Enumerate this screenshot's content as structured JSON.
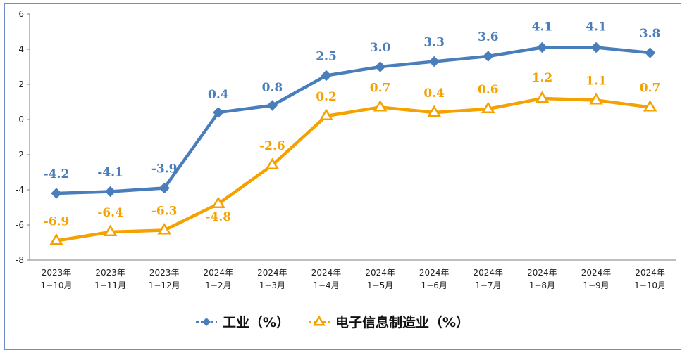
{
  "chart_data": {
    "type": "line",
    "categories": [
      [
        "2023年",
        "1−10月"
      ],
      [
        "2023年",
        "1−11月"
      ],
      [
        "2023年",
        "1−12月"
      ],
      [
        "2024年",
        "1−2月"
      ],
      [
        "2024年",
        "1−3月"
      ],
      [
        "2024年",
        "1−4月"
      ],
      [
        "2024年",
        "1−5月"
      ],
      [
        "2024年",
        "1−6月"
      ],
      [
        "2024年",
        "1−7月"
      ],
      [
        "2024年",
        "1−8月"
      ],
      [
        "2024年",
        "1−9月"
      ],
      [
        "2024年",
        "1−10月"
      ]
    ],
    "series": [
      {
        "name": "工业（%）",
        "color": "#4a7ebb",
        "marker": "diamond",
        "values": [
          -4.2,
          -4.1,
          -3.9,
          0.4,
          0.8,
          2.5,
          3.0,
          3.3,
          3.6,
          4.1,
          4.1,
          3.8
        ],
        "labels": [
          "-4.2",
          "-4.1",
          "-3.9",
          "0.4",
          "0.8",
          "2.5",
          "3.0",
          "3.3",
          "3.6",
          "4.1",
          "4.1",
          "3.8"
        ]
      },
      {
        "name": "电子信息制造业（%）",
        "color": "#f5a100",
        "marker": "triangle",
        "values": [
          -6.9,
          -6.4,
          -6.3,
          -4.8,
          -2.6,
          0.2,
          0.7,
          0.4,
          0.6,
          1.2,
          1.1,
          0.7
        ],
        "labels": [
          "-6.9",
          "-6.4",
          "-6.3",
          "-4.8",
          "-2.6",
          "0.2",
          "0.7",
          "0.4",
          "0.6",
          "1.2",
          "1.1",
          "0.7"
        ]
      }
    ],
    "yticks": [
      "6",
      "4",
      "2",
      "0",
      "-2",
      "-4",
      "-6",
      "-8"
    ],
    "ylim": [
      -8,
      6
    ],
    "legend_position": "bottom",
    "grid": false
  }
}
